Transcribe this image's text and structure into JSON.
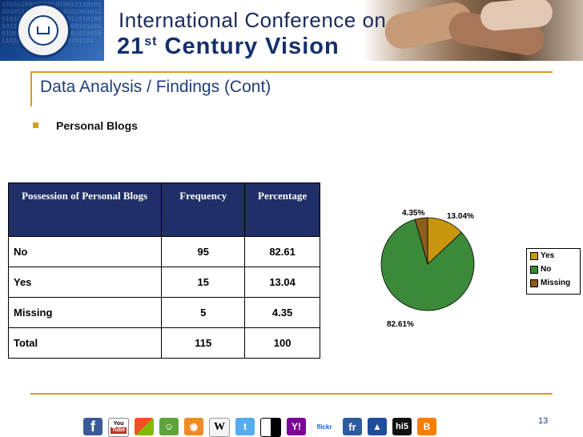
{
  "banner": {
    "line1": "International Conference on",
    "line2_prefix": "21",
    "line2_sup": "st",
    "line2_suffix": " Century Vision"
  },
  "slide": {
    "title": "Data Analysis / Findings (Cont)",
    "bullet": "Personal Blogs",
    "page_number": "13"
  },
  "table": {
    "headers": [
      "Possession of Personal Blogs",
      "Frequency",
      "Percentage"
    ],
    "rows": [
      [
        "No",
        "95",
        "82.61"
      ],
      [
        "Yes",
        "15",
        "13.04"
      ],
      [
        "Missing",
        "5",
        "4.35"
      ],
      [
        "Total",
        "115",
        "100"
      ]
    ]
  },
  "chart_data": {
    "type": "pie",
    "categories": [
      "Yes",
      "No",
      "Missing"
    ],
    "values": [
      13.04,
      82.61,
      4.35
    ],
    "labels": [
      "13.04%",
      "82.61%",
      "4.35%"
    ],
    "colors": [
      "#c8960c",
      "#3a8a3a",
      "#8b5e1c"
    ],
    "legend_position": "right"
  },
  "icons": [
    "facebook-icon",
    "youtube-icon",
    "windows-live-icon",
    "delicious-user-icon",
    "rss-icon",
    "wikipedia-icon",
    "twitter-icon",
    "delicious-icon",
    "yahoo-icon",
    "flickr-icon",
    "friendfeed-icon",
    "myspace-icon",
    "hi5-icon",
    "blogger-icon"
  ],
  "icon_glyphs": {
    "facebook": "f",
    "youtube_top": "You",
    "youtube_bottom": "Tube",
    "wikipedia": "W",
    "flickr": "flickr",
    "friendfeed": "fr",
    "hi5": "hi5",
    "blogger": "B"
  },
  "colors": {
    "accent": "#d4a017",
    "title": "#1f3e7a",
    "table_header": "#1f2f67"
  }
}
